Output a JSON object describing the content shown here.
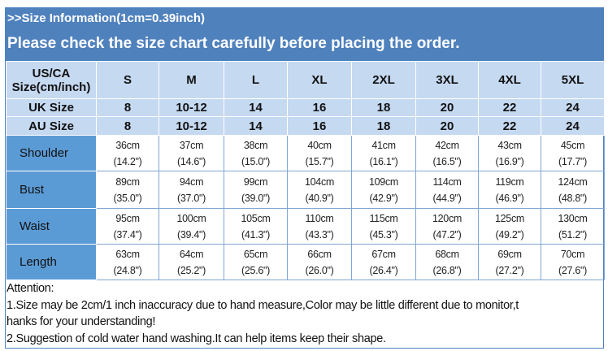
{
  "header": {
    "title": ">>Size Information(1cm=0.39inch)",
    "subtitle": "Please check the size chart carefully before placing the order."
  },
  "table": {
    "head_label": [
      "US/CA",
      "Size(cm/inch)"
    ],
    "sizes": [
      "S",
      "M",
      "L",
      "XL",
      "2XL",
      "3XL",
      "4XL",
      "5XL"
    ],
    "uk": {
      "label": "UK Size",
      "values": [
        "8",
        "10-12",
        "14",
        "16",
        "18",
        "20",
        "22",
        "24"
      ]
    },
    "au": {
      "label": "AU Size",
      "values": [
        "8",
        "10-12",
        "14",
        "16",
        "18",
        "20",
        "22",
        "24"
      ]
    },
    "rows": [
      {
        "label": "Shoulder",
        "cm": [
          "36cm",
          "37cm",
          "38cm",
          "40cm",
          "41cm",
          "42cm",
          "43cm",
          "45cm"
        ],
        "inch": [
          "(14.2\")",
          "(14.6\")",
          "(15.0\")",
          "(15.7\")",
          "(16.1\")",
          "(16.5\")",
          "(16.9\")",
          "(17.7\")"
        ]
      },
      {
        "label": "Bust",
        "cm": [
          "89cm",
          "94cm",
          "99cm",
          "104cm",
          "109cm",
          "114cm",
          "119cm",
          "124cm"
        ],
        "inch": [
          "(35.0\")",
          "(37.0\")",
          "(39.0\")",
          "(40.9\")",
          "(42.9\")",
          "(44.9\")",
          "(46.9\")",
          "(48.8\")"
        ]
      },
      {
        "label": "Waist",
        "cm": [
          "95cm",
          "100cm",
          "105cm",
          "110cm",
          "115cm",
          "120cm",
          "125cm",
          "130cm"
        ],
        "inch": [
          "(37.4\")",
          "(39.4\")",
          "(41.3\")",
          "(43.3\")",
          "(45.3\")",
          "(47.2\")",
          "(49.2\")",
          "(51.2\")"
        ]
      },
      {
        "label": "Length",
        "cm": [
          "63cm",
          "64cm",
          "65cm",
          "66cm",
          "67cm",
          "68cm",
          "69cm",
          "70cm"
        ],
        "inch": [
          "(24.8\")",
          "(25.2\")",
          "(25.6\")",
          "(26.0\")",
          "(26.4\")",
          "(26.8\")",
          "(27.2\")",
          "(27.6\")"
        ]
      }
    ]
  },
  "notes": [
    "Attention:",
    "1.Size may be 2cm/1 inch inaccuracy due to hand measure,Color may be little different due to monitor,t",
    "hanks for your understanding!",
    "2.Suggestion of cold water hand washing.It can help items keep their shape."
  ],
  "colors": {
    "header": "#4f81bd",
    "light": "#c5d9f1",
    "label": "#5b9bd5"
  }
}
